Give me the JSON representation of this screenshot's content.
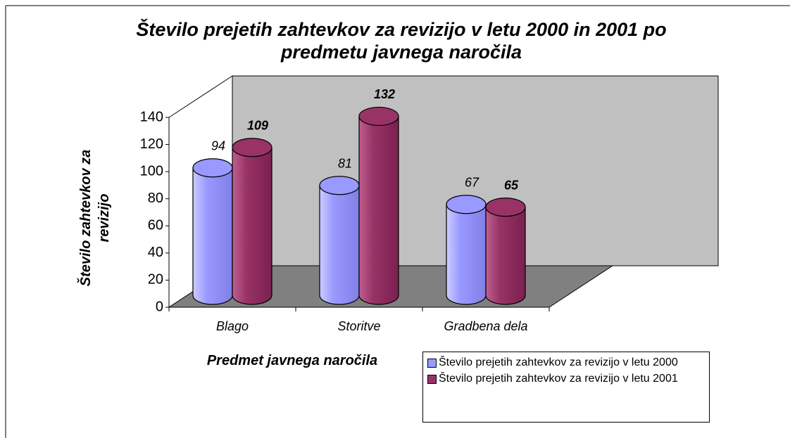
{
  "chart_data": {
    "type": "bar3d",
    "title": "Število prejetih zahtevkov za revizijo v letu 2000 in 2001 po predmetu javnega naročila",
    "y_label": "Število zahtevkov za revizijo",
    "x_label": "Predmet javnega naročila",
    "categories": [
      "Blago",
      "Storitve",
      "Gradbena dela"
    ],
    "series": [
      {
        "name": "Število prejetih zahtevkov za revizijo v letu 2000",
        "color": "#9999ff",
        "values": [
          94,
          81,
          67
        ]
      },
      {
        "name": "Število prejetih zahtevkov za revizijo v letu 2001",
        "color": "#993366",
        "values": [
          109,
          132,
          65
        ]
      }
    ],
    "ylim": [
      0,
      140
    ],
    "yticks": [
      0,
      20,
      40,
      60,
      80,
      100,
      120,
      140
    ]
  }
}
